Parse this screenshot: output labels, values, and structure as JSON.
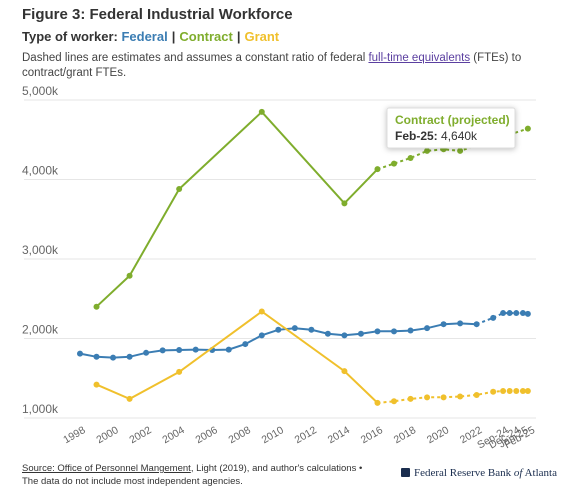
{
  "header": {
    "title": "Figure 3: Federal Industrial Workforce",
    "subtitle_prefix": "Type of worker:",
    "separator": "|",
    "note_before": "Dashed lines are estimates and assumes a constant ratio of federal ",
    "note_link": "full-time equivalents",
    "note_after": " (FTEs) to contract/grant FTEs."
  },
  "tooltip": {
    "title": "Contract (projected)",
    "label": "Feb-25:",
    "value": "4,640k"
  },
  "footer": {
    "source_label": "Source: ",
    "source_link": "Source: Office of Personnel Mangement",
    "source_rest": ", Light (2019), and author's calculations • The data do not include most independent agencies.",
    "brand_pre": "Federal Reserve Bank ",
    "brand_of": "of",
    "brand_post": " Atlanta"
  },
  "colors": {
    "Federal": "#3b7db3",
    "Contract": "#7fad2d",
    "Grant": "#f0c02c",
    "gridline": "#e6e6e6",
    "axis_label": "#666666"
  },
  "chart_data": {
    "type": "line",
    "title": "Figure 3: Federal Industrial Workforce",
    "ylim": [
      1000,
      5000
    ],
    "y_ticks": [
      1000,
      2000,
      3000,
      4000,
      5000
    ],
    "y_tick_labels": [
      "1,000k",
      "2,000k",
      "3,000k",
      "4,000k",
      "5,000k"
    ],
    "x_tick_labels": [
      "1998",
      "2000",
      "2002",
      "2004",
      "2006",
      "2008",
      "2010",
      "2012",
      "2014",
      "2016",
      "2018",
      "2020",
      "2022",
      "Sep-24",
      "Dec-24",
      "Jan-25",
      "Feb-25"
    ],
    "grid": true,
    "legend": "subtitle",
    "series": [
      {
        "name": "Federal",
        "actual": [
          [
            1998,
            1810
          ],
          [
            1999,
            1770
          ],
          [
            2000,
            1760
          ],
          [
            2001,
            1770
          ],
          [
            2002,
            1820
          ],
          [
            2003,
            1850
          ],
          [
            2004,
            1855
          ],
          [
            2005,
            1860
          ],
          [
            2006,
            1855
          ],
          [
            2007,
            1860
          ],
          [
            2008,
            1930
          ],
          [
            2009,
            2040
          ],
          [
            2010,
            2110
          ],
          [
            2011,
            2130
          ],
          [
            2012,
            2110
          ],
          [
            2013,
            2060
          ],
          [
            2014,
            2040
          ],
          [
            2015,
            2060
          ],
          [
            2016,
            2090
          ],
          [
            2017,
            2090
          ],
          [
            2018,
            2100
          ],
          [
            2019,
            2130
          ],
          [
            2020,
            2180
          ],
          [
            2021,
            2190
          ],
          [
            2022,
            2180
          ]
        ],
        "projected": [
          [
            2022,
            2180
          ],
          [
            2023,
            2260
          ],
          [
            2023.6,
            2320
          ],
          [
            2024,
            2320
          ],
          [
            2024.4,
            2320
          ],
          [
            2024.8,
            2320
          ],
          [
            2025.1,
            2310
          ]
        ]
      },
      {
        "name": "Contract",
        "actual": [
          [
            1999,
            2400
          ],
          [
            2001,
            2790
          ],
          [
            2004,
            3880
          ],
          [
            2009,
            4850
          ],
          [
            2014,
            3700
          ],
          [
            2016,
            4130
          ]
        ],
        "projected": [
          [
            2016,
            4130
          ],
          [
            2017,
            4200
          ],
          [
            2018,
            4270
          ],
          [
            2019,
            4360
          ],
          [
            2020,
            4380
          ],
          [
            2021,
            4360
          ],
          [
            2025.1,
            4640
          ]
        ]
      },
      {
        "name": "Grant",
        "actual": [
          [
            1999,
            1420
          ],
          [
            2001,
            1240
          ],
          [
            2004,
            1580
          ],
          [
            2009,
            2340
          ],
          [
            2014,
            1590
          ],
          [
            2016,
            1190
          ]
        ],
        "projected": [
          [
            2016,
            1190
          ],
          [
            2017,
            1210
          ],
          [
            2018,
            1240
          ],
          [
            2019,
            1260
          ],
          [
            2020,
            1260
          ],
          [
            2021,
            1270
          ],
          [
            2022,
            1290
          ],
          [
            2023,
            1330
          ],
          [
            2023.6,
            1340
          ],
          [
            2024,
            1340
          ],
          [
            2024.4,
            1340
          ],
          [
            2024.8,
            1340
          ],
          [
            2025.1,
            1340
          ]
        ]
      }
    ]
  }
}
